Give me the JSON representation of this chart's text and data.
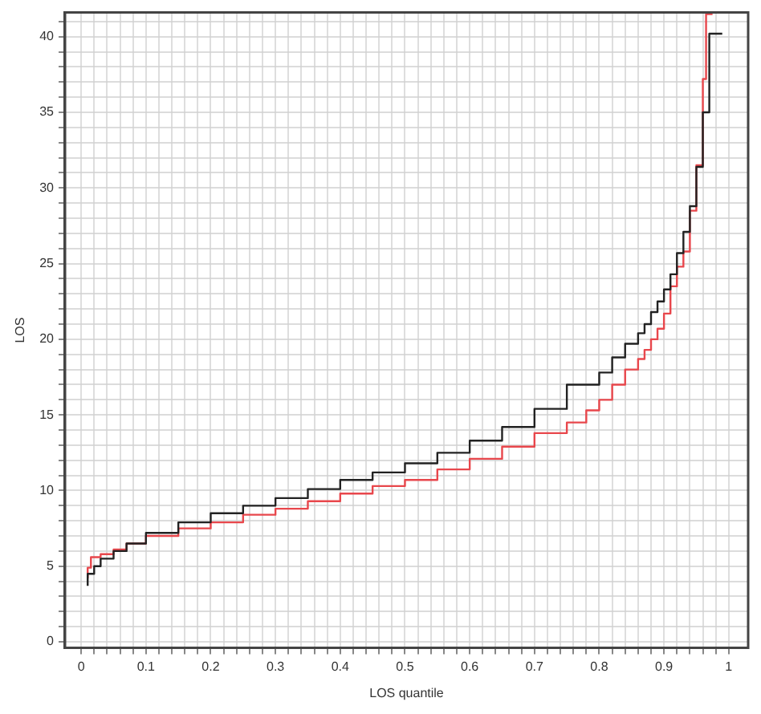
{
  "chart_data": {
    "type": "step",
    "xlabel": "LOS quantile",
    "ylabel": "LOS",
    "grid": true,
    "line_style": "solid",
    "marker": "none",
    "xlim": [
      -0.025,
      1.03
    ],
    "ylim": [
      -0.4,
      41.6
    ],
    "xticks": [
      0,
      {
        "value": 0.02,
        "label": null
      },
      {
        "value": 0.04,
        "label": null
      },
      {
        "value": 0.06,
        "label": null
      },
      {
        "value": 0.08,
        "label": null
      },
      0.1,
      {
        "value": 0.12,
        "label": null
      },
      {
        "value": 0.14,
        "label": null
      },
      {
        "value": 0.16,
        "label": null
      },
      {
        "value": 0.18,
        "label": null
      },
      0.2,
      {
        "value": 0.22,
        "label": null
      },
      {
        "value": 0.24,
        "label": null
      },
      {
        "value": 0.26,
        "label": null
      },
      {
        "value": 0.28,
        "label": null
      },
      0.3,
      {
        "value": 0.32,
        "label": null
      },
      {
        "value": 0.34,
        "label": null
      },
      {
        "value": 0.36,
        "label": null
      },
      {
        "value": 0.38,
        "label": null
      },
      0.4,
      {
        "value": 0.42,
        "label": null
      },
      {
        "value": 0.44,
        "label": null
      },
      {
        "value": 0.46,
        "label": null
      },
      {
        "value": 0.48,
        "label": null
      },
      0.5,
      {
        "value": 0.52,
        "label": null
      },
      {
        "value": 0.54,
        "label": null
      },
      {
        "value": 0.56,
        "label": null
      },
      {
        "value": 0.58,
        "label": null
      },
      0.6,
      {
        "value": 0.62,
        "label": null
      },
      {
        "value": 0.64,
        "label": null
      },
      {
        "value": 0.66,
        "label": null
      },
      {
        "value": 0.68,
        "label": null
      },
      0.7,
      {
        "value": 0.72,
        "label": null
      },
      {
        "value": 0.74,
        "label": null
      },
      {
        "value": 0.76,
        "label": null
      },
      {
        "value": 0.78,
        "label": null
      },
      0.8,
      {
        "value": 0.82,
        "label": null
      },
      {
        "value": 0.84,
        "label": null
      },
      {
        "value": 0.86,
        "label": null
      },
      {
        "value": 0.88,
        "label": null
      },
      0.9,
      {
        "value": 0.92,
        "label": null
      },
      {
        "value": 0.94,
        "label": null
      },
      {
        "value": 0.96,
        "label": null
      },
      {
        "value": 0.98,
        "label": null
      },
      1
    ],
    "yticks": [
      0,
      {
        "value": 1,
        "label": null
      },
      {
        "value": 2,
        "label": null
      },
      {
        "value": 3,
        "label": null
      },
      {
        "value": 4,
        "label": null
      },
      5,
      {
        "value": 6,
        "label": null
      },
      {
        "value": 7,
        "label": null
      },
      {
        "value": 8,
        "label": null
      },
      {
        "value": 9,
        "label": null
      },
      10,
      {
        "value": 11,
        "label": null
      },
      {
        "value": 12,
        "label": null
      },
      {
        "value": 13,
        "label": null
      },
      {
        "value": 14,
        "label": null
      },
      15,
      {
        "value": 16,
        "label": null
      },
      {
        "value": 17,
        "label": null
      },
      {
        "value": 18,
        "label": null
      },
      {
        "value": 19,
        "label": null
      },
      20,
      {
        "value": 21,
        "label": null
      },
      {
        "value": 22,
        "label": null
      },
      {
        "value": 23,
        "label": null
      },
      {
        "value": 24,
        "label": null
      },
      25,
      {
        "value": 26,
        "label": null
      },
      {
        "value": 27,
        "label": null
      },
      {
        "value": 28,
        "label": null
      },
      {
        "value": 29,
        "label": null
      },
      30,
      {
        "value": 31,
        "label": null
      },
      {
        "value": 32,
        "label": null
      },
      {
        "value": 33,
        "label": null
      },
      {
        "value": 34,
        "label": null
      },
      35,
      {
        "value": 36,
        "label": null
      },
      {
        "value": 37,
        "label": null
      },
      {
        "value": 38,
        "label": null
      },
      {
        "value": 39,
        "label": null
      },
      40,
      {
        "value": 41,
        "label": null
      }
    ],
    "series": [
      {
        "color": "#222222",
        "x": [
          0.01,
          0.02,
          0.03,
          0.05,
          0.07,
          0.1,
          0.15,
          0.2,
          0.25,
          0.3,
          0.35,
          0.4,
          0.45,
          0.5,
          0.55,
          0.6,
          0.65,
          0.7,
          0.75,
          0.8,
          0.82,
          0.84,
          0.86,
          0.87,
          0.88,
          0.89,
          0.9,
          0.91,
          0.92,
          0.93,
          0.94,
          0.95,
          0.96,
          0.97,
          0.98,
          0.99
        ],
        "values": [
          3.7,
          4.5,
          5.0,
          5.5,
          6.0,
          6.5,
          7.2,
          7.9,
          8.5,
          9.0,
          9.5,
          10.1,
          10.7,
          11.2,
          11.8,
          12.5,
          13.3,
          14.2,
          15.4,
          17.0,
          17.8,
          18.8,
          19.7,
          20.4,
          21.0,
          21.8,
          22.5,
          23.3,
          24.3,
          25.7,
          27.1,
          28.8,
          31.4,
          35.0,
          40.2,
          40.2
        ]
      },
      {
        "color": "#e8474c",
        "x": [
          0.01,
          0.015,
          0.03,
          0.05,
          0.07,
          0.1,
          0.15,
          0.2,
          0.25,
          0.3,
          0.35,
          0.4,
          0.45,
          0.5,
          0.55,
          0.6,
          0.65,
          0.7,
          0.75,
          0.78,
          0.8,
          0.82,
          0.84,
          0.86,
          0.87,
          0.88,
          0.89,
          0.9,
          0.91,
          0.92,
          0.93,
          0.94,
          0.95,
          0.96,
          0.965,
          0.975
        ],
        "values": [
          4.2,
          4.9,
          5.6,
          5.8,
          6.1,
          6.5,
          7.0,
          7.5,
          7.9,
          8.4,
          8.8,
          9.3,
          9.8,
          10.3,
          10.7,
          11.4,
          12.1,
          12.9,
          13.8,
          14.5,
          15.3,
          16.0,
          17.0,
          18.0,
          18.7,
          19.3,
          20.0,
          20.7,
          21.7,
          23.5,
          24.8,
          25.8,
          28.5,
          31.5,
          37.2,
          41.5
        ]
      }
    ]
  }
}
